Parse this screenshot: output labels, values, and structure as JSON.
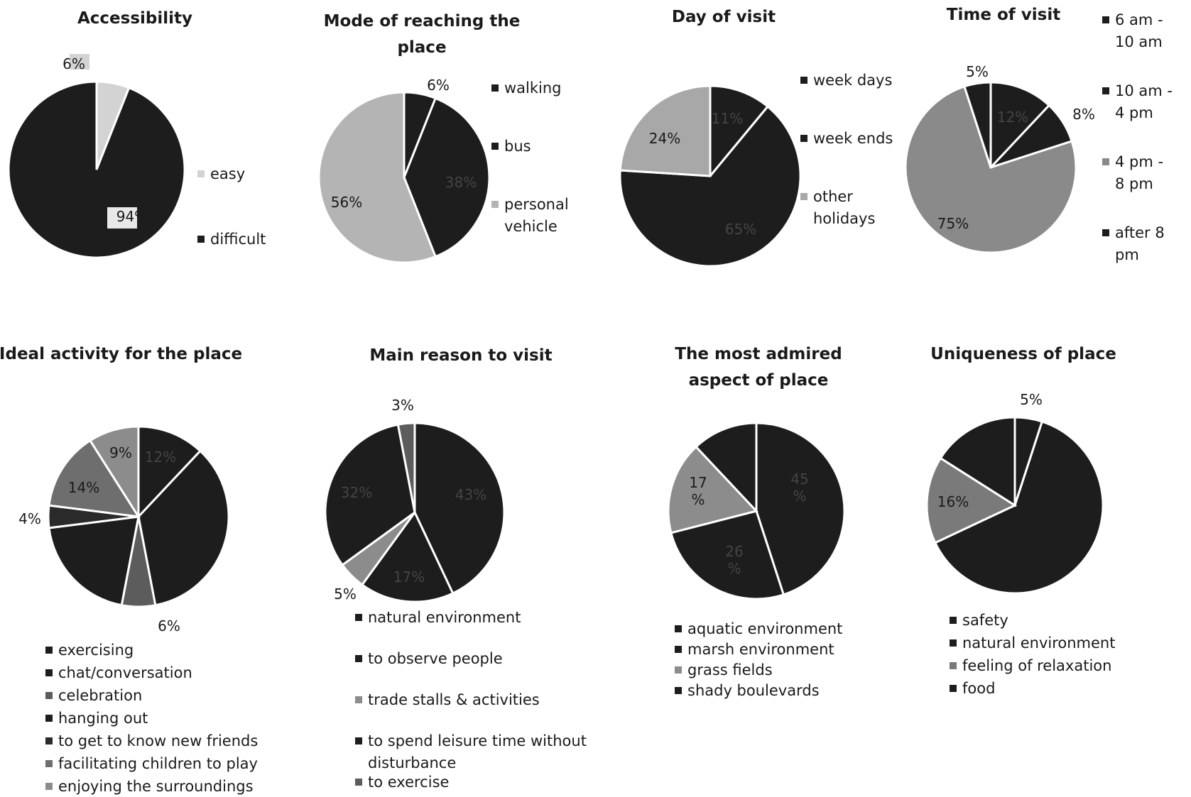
{
  "chart_data": [
    {
      "type": "pie",
      "title": "Accessibility",
      "slices": [
        {
          "name": "easy",
          "value": 6,
          "label": "6%",
          "color": "#d3d3d3"
        },
        {
          "name": "difficult",
          "value": 94,
          "label": "94%",
          "color": "#1d1d1d"
        }
      ],
      "legend": [
        "easy",
        "difficult"
      ],
      "legend_position": "right"
    },
    {
      "type": "pie",
      "title": "Mode of reaching the place",
      "slices": [
        {
          "name": "walking",
          "value": 6,
          "label": "6%",
          "color": "#1d1d1d"
        },
        {
          "name": "bus",
          "value": 38,
          "label": "38%",
          "color": "#1d1d1d"
        },
        {
          "name": "personal vehicle",
          "value": 56,
          "label": "56%",
          "color": "#b4b4b4"
        }
      ],
      "legend": [
        "walking",
        "bus",
        "personal vehicle"
      ],
      "legend_position": "right"
    },
    {
      "type": "pie",
      "title": "Day of visit",
      "slices": [
        {
          "name": "week days",
          "value": 11,
          "label": "11%",
          "color": "#1d1d1d"
        },
        {
          "name": "week ends",
          "value": 65,
          "label": "65%",
          "color": "#1d1d1d"
        },
        {
          "name": "other holidays",
          "value": 24,
          "label": "24%",
          "color": "#a8a8a8"
        }
      ],
      "legend": [
        "week days",
        "week ends",
        "other holidays"
      ],
      "legend_position": "right"
    },
    {
      "type": "pie",
      "title": "Time of visit",
      "slices": [
        {
          "name": "6 am - 10 am",
          "value": 12,
          "label": "12%",
          "color": "#1d1d1d"
        },
        {
          "name": "10 am - 4 pm",
          "value": 8,
          "label": "8%",
          "color": "#1d1d1d"
        },
        {
          "name": "4 pm - 8 pm",
          "value": 75,
          "label": "75%",
          "color": "#8a8a8a"
        },
        {
          "name": "after 8 pm",
          "value": 5,
          "label": "5%",
          "color": "#1d1d1d"
        }
      ],
      "legend": [
        "6 am - 10 am",
        "10 am - 4 pm",
        "4 pm - 8 pm",
        "after 8 pm"
      ],
      "legend_position": "right"
    },
    {
      "type": "pie",
      "title": "Ideal activity for the place",
      "slices": [
        {
          "name": "exercising",
          "value": 12,
          "label": "12%",
          "color": "#1d1d1d"
        },
        {
          "name": "chat/conversation",
          "value": 35,
          "label": "",
          "color": "#1d1d1d"
        },
        {
          "name": "celebration",
          "value": 6,
          "label": "6%",
          "color": "#5c5c5c"
        },
        {
          "name": "hanging out",
          "value": 20,
          "label": "",
          "color": "#1d1d1d"
        },
        {
          "name": "to get to know new friends",
          "value": 4,
          "label": "4%",
          "color": "#2a2a2a"
        },
        {
          "name": "facilitating children to play",
          "value": 14,
          "label": "14%",
          "color": "#6e6e6e"
        },
        {
          "name": "enjoying the surroundings",
          "value": 9,
          "label": "9%",
          "color": "#8c8c8c"
        }
      ],
      "legend": [
        "exercising",
        "chat/conversation",
        "celebration",
        "hanging out",
        "to get to know new friends",
        "facilitating children to play",
        "enjoying the surroundings"
      ],
      "legend_position": "bottom"
    },
    {
      "type": "pie",
      "title": "Main reason to visit",
      "slices": [
        {
          "name": "natural environment",
          "value": 43,
          "label": "43%",
          "color": "#1d1d1d"
        },
        {
          "name": "to observe people",
          "value": 17,
          "label": "17%",
          "color": "#1d1d1d"
        },
        {
          "name": "trade stalls & activities",
          "value": 5,
          "label": "5%",
          "color": "#8c8c8c"
        },
        {
          "name": "to spend leisure time without disturbance",
          "value": 32,
          "label": "32%",
          "color": "#1d1d1d"
        },
        {
          "name": "to exercise",
          "value": 3,
          "label": "3%",
          "color": "#5c5c5c"
        }
      ],
      "legend": [
        "natural environment",
        "to observe people",
        "trade stalls & activities",
        "to spend leisure time without disturbance",
        "to exercise"
      ],
      "legend_position": "bottom"
    },
    {
      "type": "pie",
      "title": "The most admired aspect of place",
      "slices": [
        {
          "name": "aquatic environment",
          "value": 45,
          "label": "45\n%",
          "color": "#1d1d1d"
        },
        {
          "name": "marsh environment",
          "value": 26,
          "label": "26\n%",
          "color": "#1d1d1d"
        },
        {
          "name": "grass fields",
          "value": 17,
          "label": "17\n%",
          "color": "#8c8c8c"
        },
        {
          "name": "shady boulevards",
          "value": 12,
          "label": "",
          "color": "#1d1d1d"
        }
      ],
      "legend": [
        "aquatic environment",
        "marsh environment",
        "grass fields",
        "shady boulevards"
      ],
      "legend_position": "bottom"
    },
    {
      "type": "pie",
      "title": "Uniqueness of place",
      "slices": [
        {
          "name": "safety",
          "value": 5,
          "label": "5%",
          "color": "#1d1d1d"
        },
        {
          "name": "natural environment",
          "value": 63,
          "label": "",
          "color": "#1d1d1d"
        },
        {
          "name": "feeling of relaxation",
          "value": 16,
          "label": "16%",
          "color": "#7a7a7a"
        },
        {
          "name": "food",
          "value": 16,
          "label": "",
          "color": "#1d1d1d"
        }
      ],
      "legend": [
        "safety",
        "natural environment",
        "feeling of relaxation",
        "food"
      ],
      "legend_position": "bottom"
    }
  ]
}
